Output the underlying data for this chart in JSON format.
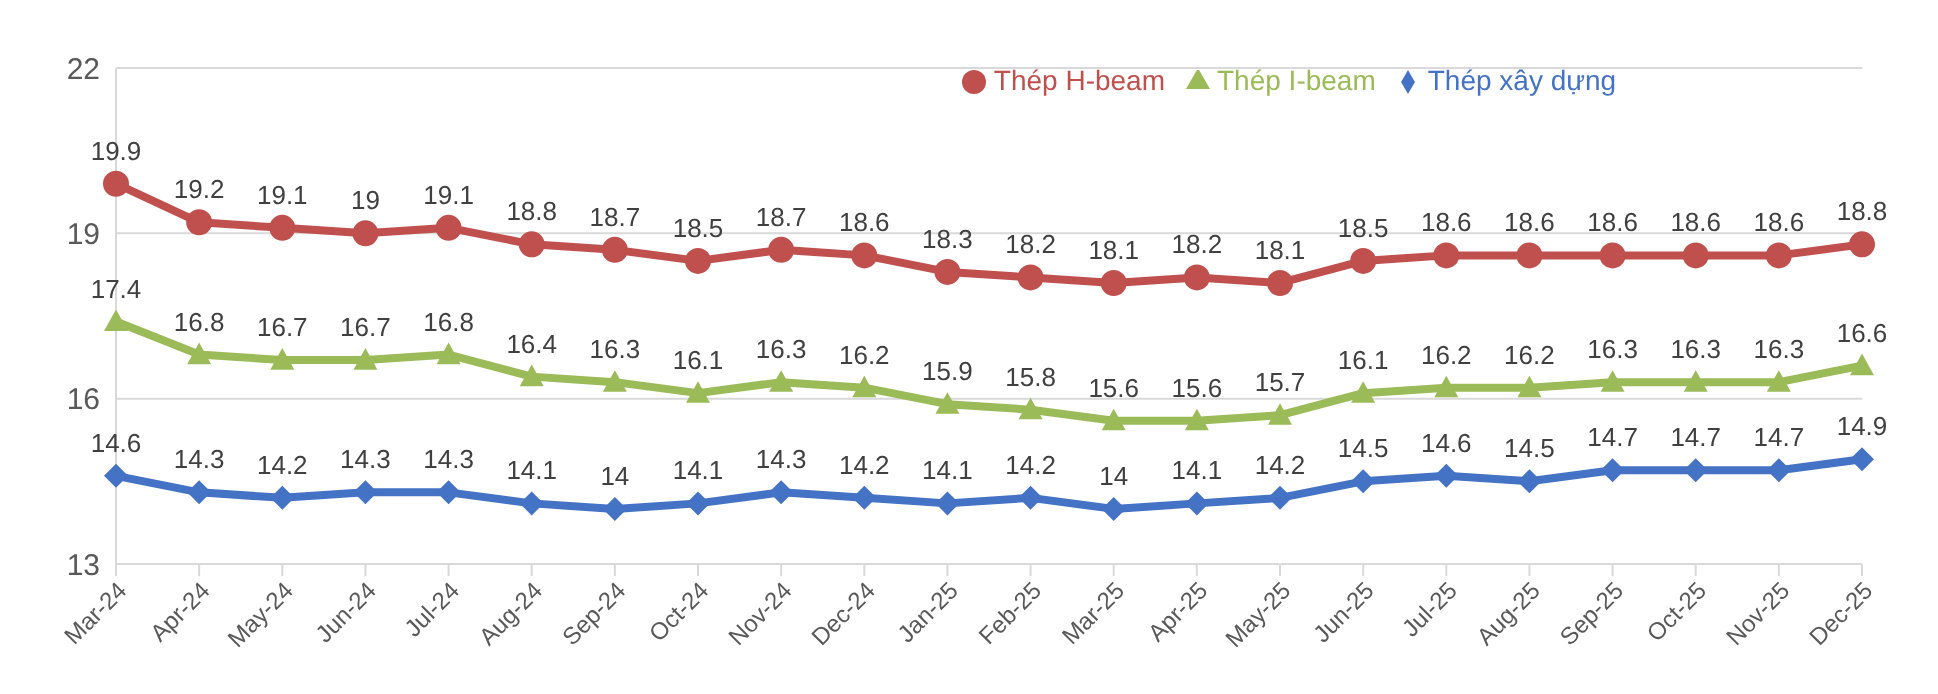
{
  "chart_data": {
    "type": "line",
    "categories": [
      "Mar-24",
      "Apr-24",
      "May-24",
      "Jun-24",
      "Jul-24",
      "Aug-24",
      "Sep-24",
      "Oct-24",
      "Nov-24",
      "Dec-24",
      "Jan-25",
      "Feb-25",
      "Mar-25",
      "Apr-25",
      "May-25",
      "Jun-25",
      "Jul-25",
      "Aug-25",
      "Sep-25",
      "Oct-25",
      "Nov-25",
      "Dec-25"
    ],
    "series": [
      {
        "name": "Thép xây dựng",
        "color": "#4472c4",
        "marker": "diamond",
        "values": [
          14.6,
          14.3,
          14.2,
          14.3,
          14.3,
          14.1,
          14,
          14.1,
          14.3,
          14.2,
          14.1,
          14.2,
          14,
          14.1,
          14.2,
          14.5,
          14.6,
          14.5,
          14.7,
          14.7,
          14.7,
          14.9
        ]
      },
      {
        "name": "Thép H-beam",
        "color": "#c0504d",
        "marker": "circle",
        "values": [
          19.9,
          19.2,
          19.1,
          19,
          19.1,
          18.8,
          18.7,
          18.5,
          18.7,
          18.6,
          18.3,
          18.2,
          18.1,
          18.2,
          18.1,
          18.5,
          18.6,
          18.6,
          18.6,
          18.6,
          18.6,
          18.8
        ]
      },
      {
        "name": "Thép I-beam",
        "color": "#9bbb59",
        "marker": "triangle",
        "values": [
          17.4,
          16.8,
          16.7,
          16.7,
          16.8,
          16.4,
          16.3,
          16.1,
          16.3,
          16.2,
          15.9,
          15.8,
          15.6,
          15.6,
          15.7,
          16.1,
          16.2,
          16.2,
          16.3,
          16.3,
          16.3,
          16.6
        ]
      }
    ],
    "ylim": [
      13,
      22
    ],
    "yticks": [
      13,
      16,
      19,
      22
    ],
    "grid": "y",
    "legend": "top",
    "data_labels": true,
    "line_style": "solid"
  }
}
